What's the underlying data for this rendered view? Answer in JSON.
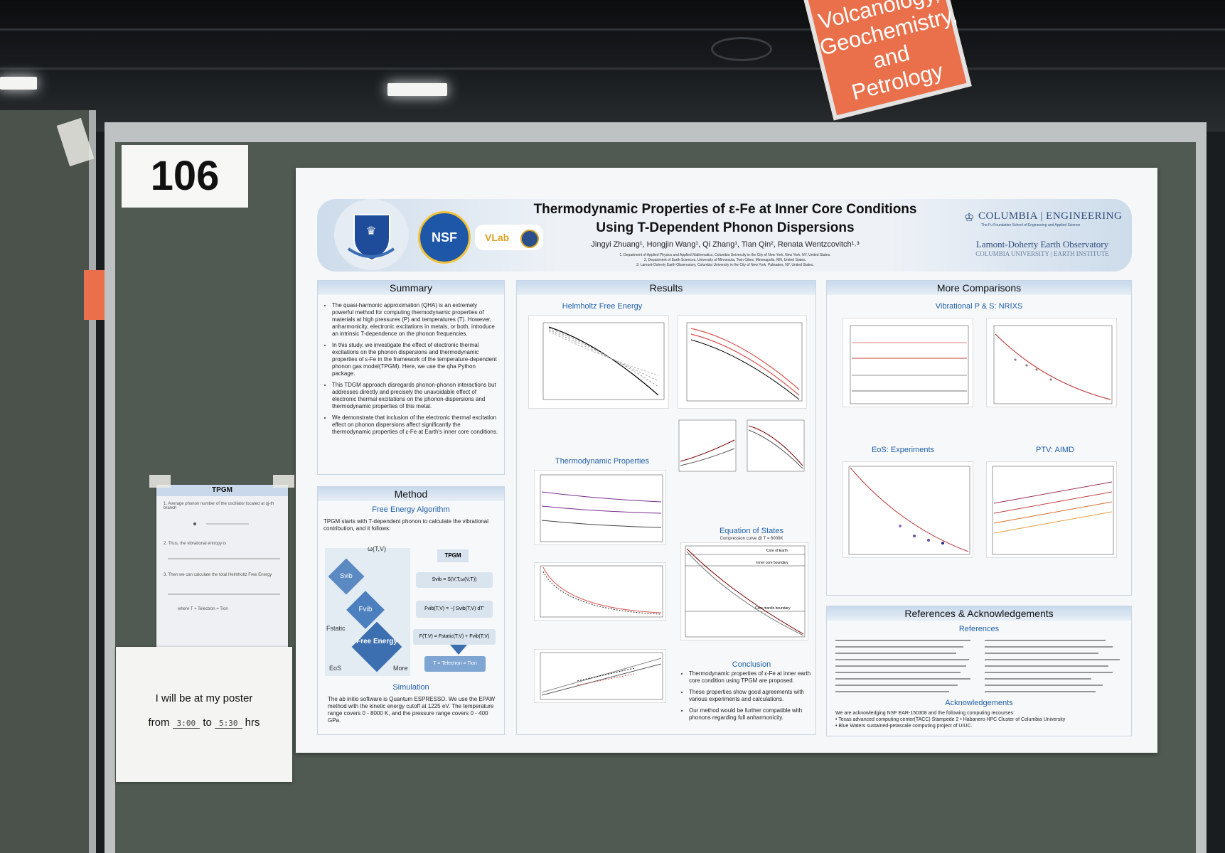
{
  "sign": {
    "line1": "Volcanology,",
    "line2": "Geochemistry,",
    "line3": "and Petrology"
  },
  "booth": {
    "number": "106"
  },
  "poster": {
    "title_line1": "Thermodynamic Properties of ε-Fe at Inner Core Conditions",
    "title_line2": "Using T-Dependent Phonon Dispersions",
    "authors": "Jingyi Zhuang¹, Hongjin Wang¹, Qi Zhang¹, Tian Qin², Renata Wentzcovitch¹˒³",
    "affiliations": [
      "1. Department of Applied Physics and Applied Mathematics, Columbia University in the City of New York, New York, NY, United States.",
      "2. Department of Earth Sciences, University of Minnesota, Twin Cities, Minneapolis, MN, United States.",
      "3. Lamont-Doherty Earth Observatory, Columbia University in the City of New York, Palisades, NY, United States."
    ],
    "logos": {
      "nsf": "NSF",
      "vlab": "VLab"
    },
    "columbia": {
      "name": "COLUMBIA | ENGINEERING",
      "sub": "The Fu Foundation School of Engineering and Applied Science"
    },
    "lamont": {
      "name": "Lamont-Doherty Earth Observatory",
      "sub": "COLUMBIA UNIVERSITY | EARTH INSTITUTE"
    },
    "summary": {
      "heading": "Summary",
      "bullets": [
        "The quasi-harmonic approximation (QHA) is an extremely powerful method for computing thermodynamic properties of materials at high pressures (P) and temperatures (T). However, anharmonicity, electronic excitations in metals, or both, introduce an intrinsic T-dependence on the phonon frequencies.",
        "In this study, we investigate the effect of electronic thermal excitations on the phonon dispersions and thermodynamic properties of ε-Fe in the framework of the temperature-dependent phonon gas model(TPGM). Here, we use the qha Python package.",
        "This TDGM approach disregards phonon-phonon interactions but addresses directly and precisely the unavoidable effect of electronic thermal excitations on the phonon-dispersions and thermodynamic properties of this metal.",
        "We demonstrate that inclusion of the electronic thermal excitation effect on phonon dispersions affect significantly the thermodynamic properties of ε-Fe at Earth's inner core conditions."
      ]
    },
    "method": {
      "heading": "Method",
      "sub1": "Free Energy Algorithm",
      "intro": "TPGM starts with T-dependent phonon to calculate the vibrational contribution, and it follows:",
      "diagram": {
        "omega": "ω(T,V)",
        "tpgm": "TPGM",
        "svib": "Svib",
        "fvib": "Fvib",
        "fstatic": "Fstatic",
        "free_energy": "Free Energy",
        "eos": "EoS",
        "more": "More",
        "eq1": "Svib = S(V,T,ω(V,T))",
        "eq2": "Fvib(T,V) = −∫ Svib(T,V) dT′",
        "eq3": "F(T,V) = Fstatic(T,V) + Fvib(T,V)",
        "eq4": "T = Telectron = Tion"
      },
      "sub2": "Simulation",
      "sim_text": "The ab initio software is Quantum ESPRESSO. We use the EPAW method with the kinetic energy cutoff at 1225 eV. The temperature range covers 0 - 8000 K, and the pressure range covers 0 - 400 GPa."
    },
    "results": {
      "heading": "Results",
      "sub1": "Helmholtz Free Energy",
      "sub2": "Thermodynamic Properties",
      "sub3": "Equation of States",
      "sub4": "Conclusion",
      "eos_plot_title": "Compression curve @ T = 6000K",
      "eos_labels": [
        "Core of Earth",
        "Inner core boundary",
        "Core mantle boundary"
      ],
      "conclusion": [
        "Thermodynamic properties of ε-Fe at inner earth core condition using TPGM are proposed.",
        "These properties show good agreements with various experiments and calculations.",
        "Our method would be further compatible with phonons regarding full anharmonicity."
      ]
    },
    "comparisons": {
      "heading": "More Comparisons",
      "sub1": "Vibrational P & S: NRIXS",
      "sub2": "EoS: Experiments",
      "sub3": "PTV: AIMD"
    },
    "references": {
      "heading": "References & Acknowledgements",
      "sub1": "References",
      "sub2": "Acknowledgements",
      "ack_intro": "We are acknowledging NSF EAR-150308 and the following computing recourses:",
      "ack_items": [
        "Texas advanced computing center(TACC) Stampede 2     • Habanero HPC Cluster of Columbia University",
        "Blue Waters sustained-petascale computing project of UIUC."
      ]
    }
  },
  "tpgm_note": {
    "heading": "TPGM",
    "lines": [
      "1. Average phonon number of the oscillator located at qj-th branch",
      "2. Thus, the vibrational entropy is",
      "3. Then we can calculate the total Helmholtz Free Energy",
      "where  T = Telectron = Tion"
    ]
  },
  "availability": {
    "line1": "I will be at my poster",
    "from": "from",
    "start": "3:00",
    "to": "to",
    "end": "5:30",
    "unit": "hrs"
  }
}
